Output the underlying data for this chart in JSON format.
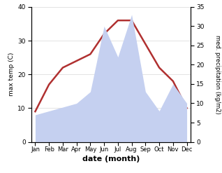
{
  "months": [
    "Jan",
    "Feb",
    "Mar",
    "Apr",
    "May",
    "Jun",
    "Jul",
    "Aug",
    "Sep",
    "Oct",
    "Nov",
    "Dec"
  ],
  "temperature": [
    9,
    17,
    22,
    24,
    26,
    32,
    36,
    36,
    29,
    22,
    18,
    10
  ],
  "precipitation": [
    7,
    8,
    9,
    10,
    13,
    30,
    22,
    33,
    13,
    8,
    15,
    10
  ],
  "temp_color": "#b03030",
  "precip_color_fill": "#c5d0f0",
  "temp_ylim": [
    0,
    40
  ],
  "precip_ylim": [
    0,
    35
  ],
  "xlabel": "date (month)",
  "ylabel_left": "max temp (C)",
  "ylabel_right": "med. precipitation (kg/m2)",
  "temp_linewidth": 1.8,
  "background_color": "#ffffff"
}
